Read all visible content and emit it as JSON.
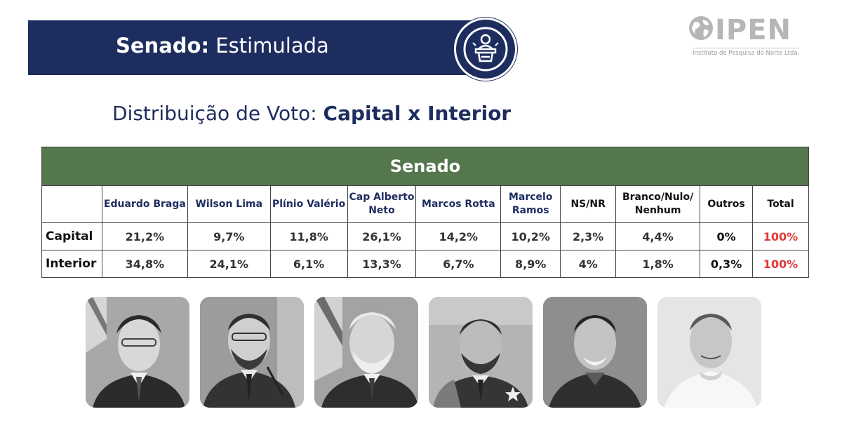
{
  "header": {
    "title_bold": "Senado:",
    "title_rest": " Estimulada",
    "badge_icon": "speaker-podium-icon"
  },
  "logo": {
    "name": "IPEN",
    "subtitle": "Instituto de Pesquisa do Norte Ltda."
  },
  "subtitle": {
    "prefix": "Distribuição de Voto: ",
    "bold": "Capital x Interior"
  },
  "table": {
    "title": "Senado",
    "columns": [
      "",
      "Eduardo Braga",
      "Wilson Lima",
      "Plínio Valério",
      "Cap Alberto Neto",
      "Marcos Rotta",
      "Marcelo Ramos",
      "NS/NR",
      "Branco/Nulo/ Nenhum",
      "Outros",
      "Total"
    ],
    "rows": [
      {
        "label": "Capital",
        "values": [
          "21,2%",
          "9,7%",
          "11,8%",
          "26,1%",
          "14,2%",
          "10,2%",
          "2,3%",
          "4,4%",
          "0%",
          "100%"
        ]
      },
      {
        "label": "Interior",
        "values": [
          "34,8%",
          "24,1%",
          "6,1%",
          "13,3%",
          "6,7%",
          "8,9%",
          "4%",
          "1,8%",
          "0,3%",
          "100%"
        ]
      }
    ]
  },
  "colors": {
    "navy": "#1e2d5f",
    "green_header": "#54774e",
    "total_red": "#e03a3a"
  },
  "photos": [
    "candidate-photo-eduardo-braga",
    "candidate-photo-wilson-lima",
    "candidate-photo-plinio-valerio",
    "candidate-photo-cap-alberto-neto",
    "candidate-photo-marcos-rotta",
    "candidate-photo-marcelo-ramos"
  ]
}
